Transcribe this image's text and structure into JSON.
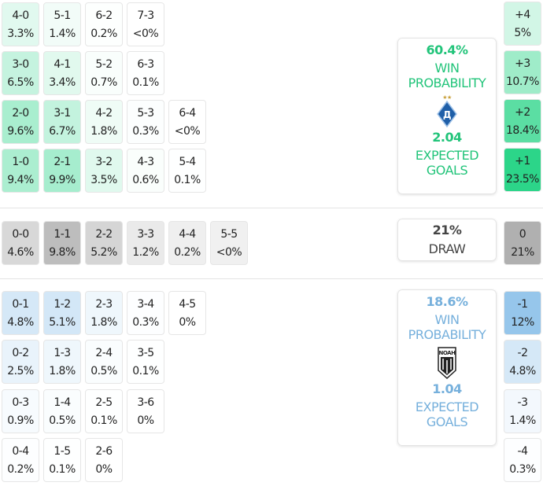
{
  "colors": {
    "home": "#22c47a",
    "away": "#76b0dc",
    "draw": "#9e9e9e"
  },
  "home": {
    "win_pct": "60.4%",
    "win_label_1": "WIN",
    "win_label_2": "PROBABILITY",
    "xg": "2.04",
    "xg_label_1": "EXPECTED",
    "xg_label_2": "GOALS",
    "logo": "dynamo-kyiv-crest-icon"
  },
  "away": {
    "win_pct": "18.6%",
    "win_label_1": "WIN",
    "win_label_2": "PROBABILITY",
    "xg": "1.04",
    "xg_label_1": "EXPECTED",
    "xg_label_2": "GOALS",
    "logo": "noah-crest-icon",
    "logo_text": "NOAH"
  },
  "draw": {
    "pct": "21%",
    "label": "DRAW"
  },
  "home_rows": [
    [
      [
        "4-0",
        "3.3%"
      ],
      [
        "5-1",
        "1.4%"
      ],
      [
        "6-2",
        "0.2%"
      ],
      [
        "7-3",
        "<0%"
      ]
    ],
    [
      [
        "3-0",
        "6.5%"
      ],
      [
        "4-1",
        "3.4%"
      ],
      [
        "5-2",
        "0.7%"
      ],
      [
        "6-3",
        "0.1%"
      ]
    ],
    [
      [
        "2-0",
        "9.6%"
      ],
      [
        "3-1",
        "6.7%"
      ],
      [
        "4-2",
        "1.8%"
      ],
      [
        "5-3",
        "0.3%"
      ],
      [
        "6-4",
        "<0%"
      ]
    ],
    [
      [
        "1-0",
        "9.4%"
      ],
      [
        "2-1",
        "9.9%"
      ],
      [
        "3-2",
        "3.5%"
      ],
      [
        "4-3",
        "0.6%"
      ],
      [
        "5-4",
        "0.1%"
      ]
    ]
  ],
  "draw_row": [
    [
      "0-0",
      "4.6%"
    ],
    [
      "1-1",
      "9.8%"
    ],
    [
      "2-2",
      "5.2%"
    ],
    [
      "3-3",
      "1.2%"
    ],
    [
      "4-4",
      "0.2%"
    ],
    [
      "5-5",
      "<0%"
    ]
  ],
  "away_rows": [
    [
      [
        "0-1",
        "4.8%"
      ],
      [
        "1-2",
        "5.1%"
      ],
      [
        "2-3",
        "1.8%"
      ],
      [
        "3-4",
        "0.3%"
      ],
      [
        "4-5",
        "0%"
      ]
    ],
    [
      [
        "0-2",
        "2.5%"
      ],
      [
        "1-3",
        "1.8%"
      ],
      [
        "2-4",
        "0.5%"
      ],
      [
        "3-5",
        "0.1%"
      ]
    ],
    [
      [
        "0-3",
        "0.9%"
      ],
      [
        "1-4",
        "0.5%"
      ],
      [
        "2-5",
        "0.1%"
      ],
      [
        "3-6",
        "0%"
      ]
    ],
    [
      [
        "0-4",
        "0.2%"
      ],
      [
        "1-5",
        "0.1%"
      ],
      [
        "2-6",
        "0%"
      ]
    ]
  ],
  "margins_home": [
    [
      "+4",
      "5%"
    ],
    [
      "+3",
      "10.7%"
    ],
    [
      "+2",
      "18.4%"
    ],
    [
      "+1",
      "23.5%"
    ]
  ],
  "margin_draw": [
    "0",
    "21%"
  ],
  "margins_away": [
    [
      "-1",
      "12%"
    ],
    [
      "-2",
      "4.8%"
    ],
    [
      "-3",
      "1.4%"
    ],
    [
      "-4",
      "0.3%"
    ]
  ]
}
